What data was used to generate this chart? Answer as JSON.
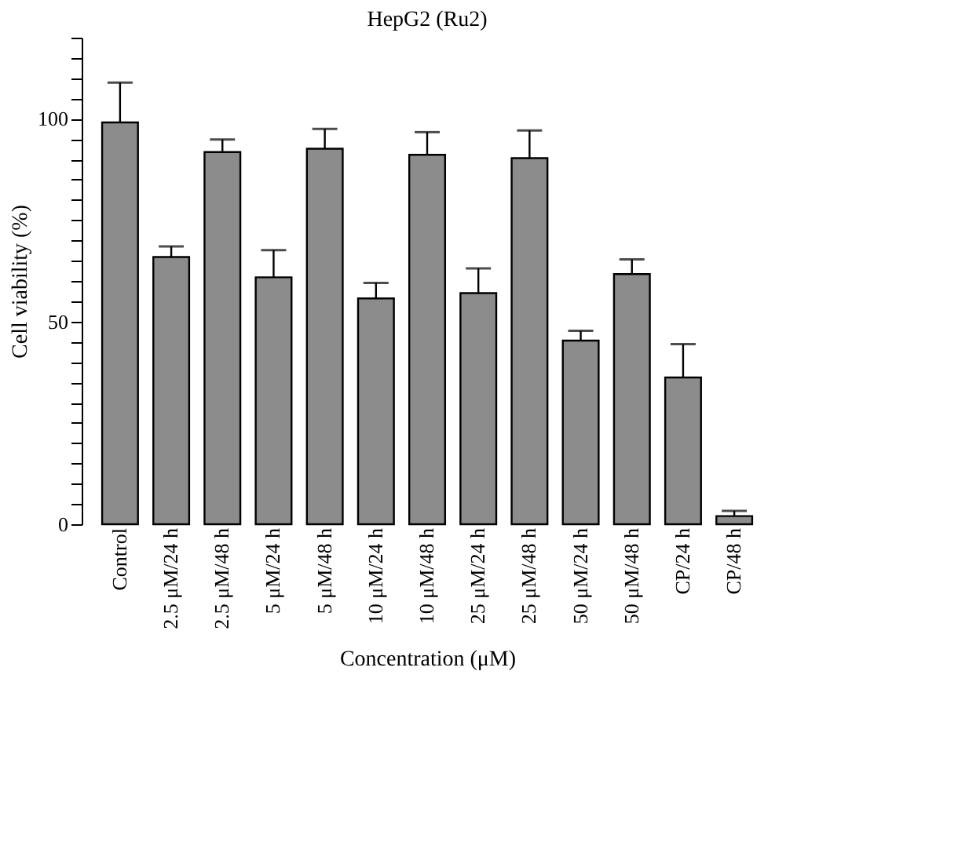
{
  "chart_data": {
    "type": "bar",
    "title": "HepG2 (Ru2)",
    "xlabel": "Concentration (μM)",
    "ylabel": "Cell viability (%)",
    "categories": [
      "Control",
      "2.5 μM/24 h",
      "2.5 μM/48 h",
      "5 μM/24 h",
      "5 μM/48 h",
      "10 μM/24 h",
      "10 μM/48 h",
      "25 μM/24 h",
      "25 μM/48 h",
      "50 μM/24 h",
      "50 μM/48 h",
      "CP/24 h",
      "CP/48 h"
    ],
    "values": [
      99.1,
      65.9,
      91.8,
      60.9,
      92.6,
      55.7,
      91.1,
      57.0,
      90.3,
      45.3,
      61.7,
      36.2,
      2.0
    ],
    "errors": [
      9.8,
      2.6,
      3.1,
      6.7,
      4.9,
      3.8,
      5.6,
      6.1,
      6.8,
      2.4,
      3.6,
      8.2,
      1.3
    ],
    "color": "#8c8c8c",
    "ylim": [
      0,
      120
    ],
    "yticks": [
      0,
      {
        "value": 5,
        "label": null
      },
      {
        "value": 10,
        "label": null
      },
      {
        "value": 15,
        "label": null
      },
      {
        "value": 20,
        "label": null
      },
      {
        "value": 25,
        "label": null
      },
      {
        "value": 30,
        "label": null
      },
      {
        "value": 35,
        "label": null
      },
      {
        "value": 40,
        "label": null
      },
      {
        "value": 45,
        "label": null
      },
      50,
      {
        "value": 55,
        "label": null
      },
      {
        "value": 60,
        "label": null
      },
      {
        "value": 65,
        "label": null
      },
      {
        "value": 70,
        "label": null
      },
      {
        "value": 75,
        "label": null
      },
      {
        "value": 80,
        "label": null
      },
      {
        "value": 85,
        "label": null
      },
      {
        "value": 90,
        "label": null
      },
      {
        "value": 95,
        "label": null
      },
      100,
      {
        "value": 105,
        "label": null
      },
      {
        "value": 110,
        "label": null
      },
      {
        "value": 115,
        "label": null
      },
      {
        "value": 120,
        "label": null
      }
    ],
    "grid": false,
    "legend": false
  }
}
